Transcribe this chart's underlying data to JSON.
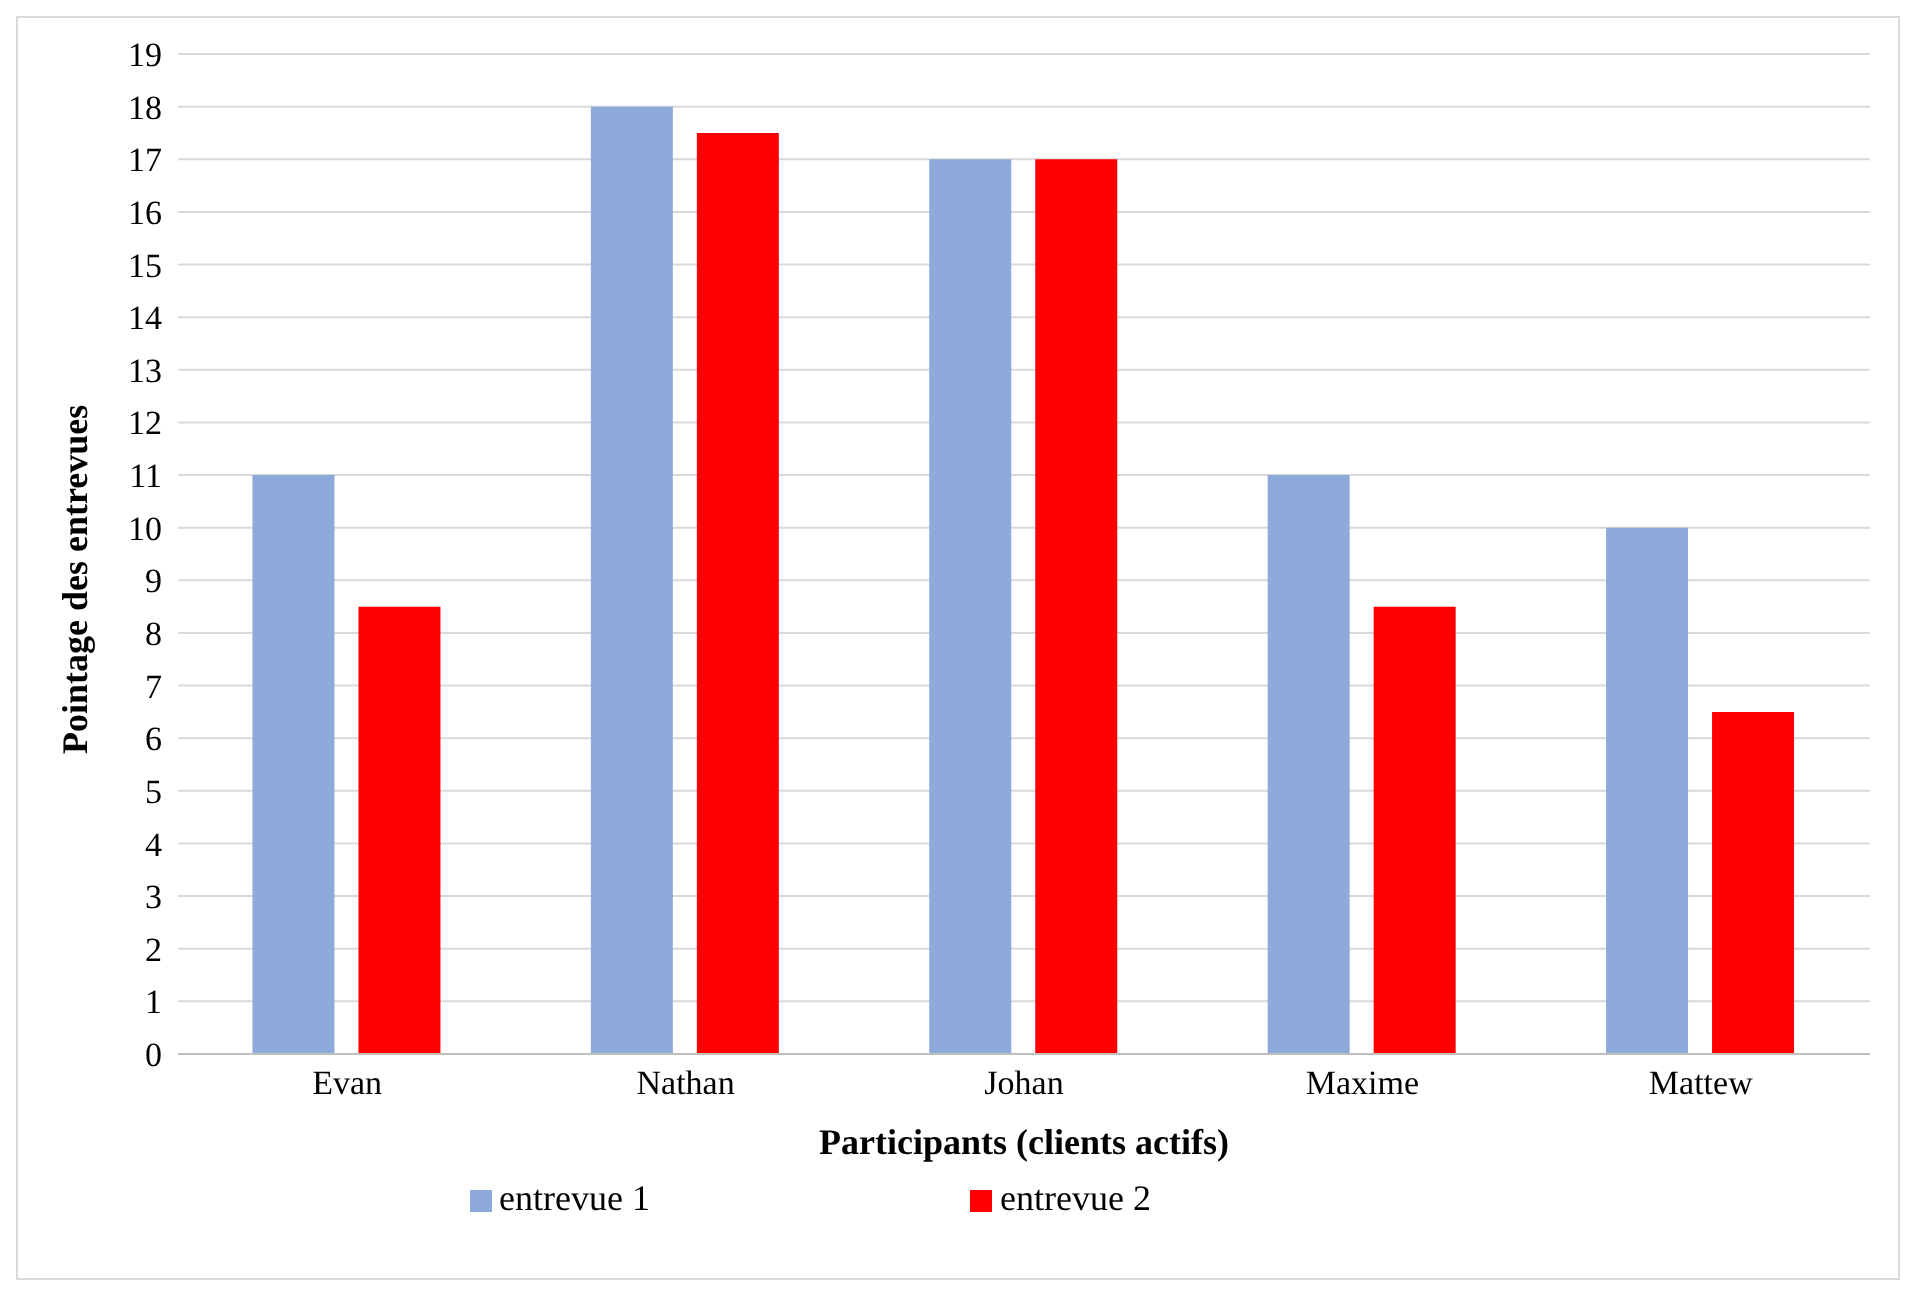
{
  "chart_data": {
    "type": "bar",
    "xlabel": "Participants (clients actifs)",
    "ylabel": "Pointage des entrevues",
    "categories": [
      "Evan",
      "Nathan",
      "Johan",
      "Maxime",
      "Mattew"
    ],
    "series": [
      {
        "name": "entrevue 1",
        "color": "#8eaadb",
        "values": [
          11,
          18,
          17,
          11,
          10
        ]
      },
      {
        "name": "entrevue 2",
        "color": "#ff0000",
        "values": [
          8.5,
          17.5,
          17,
          8.5,
          6.5
        ]
      }
    ],
    "ylim": [
      0,
      19
    ],
    "yticks": [
      0,
      1,
      2,
      3,
      4,
      5,
      6,
      7,
      8,
      9,
      10,
      11,
      12,
      13,
      14,
      15,
      16,
      17,
      18,
      19
    ],
    "grid": "y",
    "legend": "bottom"
  }
}
